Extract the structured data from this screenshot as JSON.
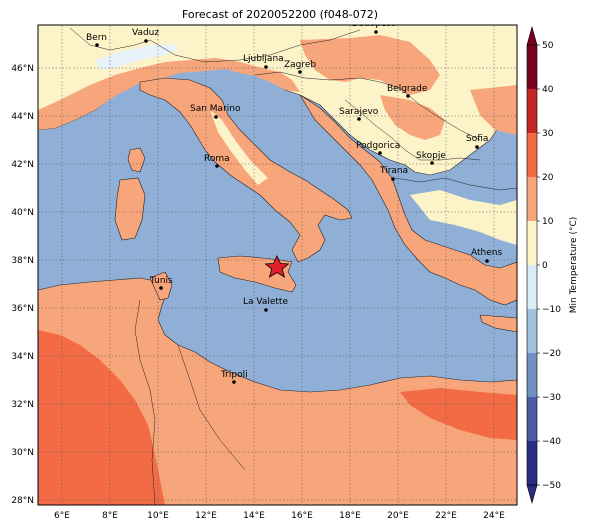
{
  "title": "Forecast of 2020052200 (f048-072)",
  "colorbar": {
    "label": "Min Temperature (°C)",
    "ticks": [
      "50",
      "40",
      "30",
      "20",
      "10",
      "0",
      "−10",
      "−20",
      "−30",
      "−40",
      "−50"
    ],
    "levels": [
      {
        "range": "-50..-40",
        "color": "#2a2d84"
      },
      {
        "range": "-40..-30",
        "color": "#4a5ca6"
      },
      {
        "range": "-30..-20",
        "color": "#6f91c2"
      },
      {
        "range": "-20..-10",
        "color": "#a2c3de"
      },
      {
        "range": "-10..0",
        "color": "#d9edf6"
      },
      {
        "range": "0..10",
        "color": "#fdf3c8"
      },
      {
        "range": "10..20",
        "color": "#f7a57b"
      },
      {
        "range": "20..30",
        "color": "#f26b44"
      },
      {
        "range": "30..40",
        "color": "#c42626"
      },
      {
        "range": "40..50",
        "color": "#7b0021"
      }
    ]
  },
  "axes": {
    "lon_ticks": [
      "6°E",
      "8°E",
      "10°E",
      "12°E",
      "14°E",
      "16°E",
      "18°E",
      "20°E",
      "22°E",
      "24°E"
    ],
    "lat_ticks": [
      "46°N",
      "44°N",
      "42°N",
      "40°N",
      "38°N",
      "36°N",
      "34°N",
      "32°N",
      "30°N",
      "28°N"
    ]
  },
  "colors": {
    "sea": "#8fafd6",
    "land_cool": "#fdf3c8",
    "land_mild": "#f7a57b",
    "land_warm": "#f26b44",
    "snow": "#e8f2fa",
    "marker": "#e0202a"
  },
  "cities": [
    {
      "name": "Bern"
    },
    {
      "name": "Vaduz"
    },
    {
      "name": "Budapest"
    },
    {
      "name": "Ljubljana"
    },
    {
      "name": "Zagreb"
    },
    {
      "name": "Belgrade"
    },
    {
      "name": "San Marino"
    },
    {
      "name": "Sarajevo"
    },
    {
      "name": "Sofia"
    },
    {
      "name": "Podgorica"
    },
    {
      "name": "Skopje"
    },
    {
      "name": "Roma"
    },
    {
      "name": "Tirana"
    },
    {
      "name": "Athens"
    },
    {
      "name": "Tunis"
    },
    {
      "name": "La Valette"
    },
    {
      "name": "Tripoli"
    }
  ],
  "marker": {
    "name": "forecast-point-star"
  }
}
